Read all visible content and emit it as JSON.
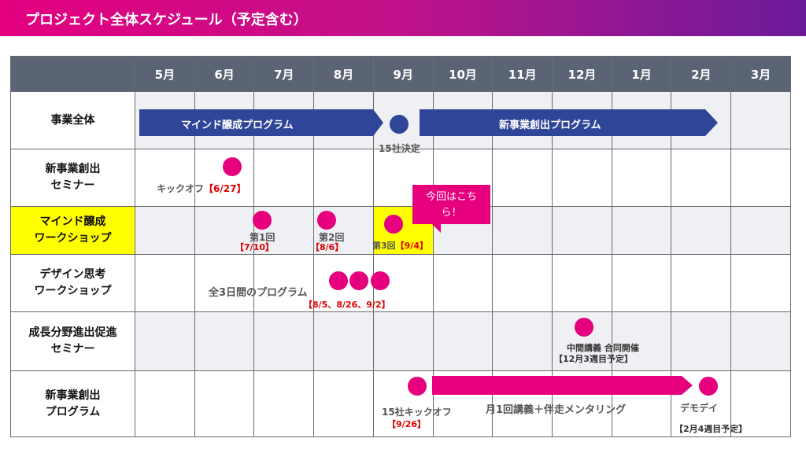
{
  "title": "プロジェクト全体スケジュール（予定含む）",
  "months": [
    "5月",
    "6月",
    "7月",
    "8月",
    "9月",
    "10月",
    "11月",
    "12月",
    "1月",
    "2月",
    "3月"
  ],
  "rows": [
    {
      "label": "事業全体"
    },
    {
      "label": "新事業創出\nセミナー"
    },
    {
      "label": "マインド醸成\nワークショップ"
    },
    {
      "label": "デザイン思考\nワークショップ"
    },
    {
      "label": "成長分野進出促進\nセミナー"
    },
    {
      "label": "新事業創出\nプログラム"
    }
  ],
  "overall": {
    "arrow1": "マインド醸成プログラム",
    "arrow2": "新事業創出プログラム",
    "milestone": "15社決定"
  },
  "seminar": {
    "label": "キックオフ",
    "date": "【6/27】"
  },
  "mind_ws": {
    "s1": "第1回",
    "d1": "【7/10】",
    "s2": "第2回",
    "d2": "【8/6】",
    "s3": "第3回",
    "d3": "【9/4】",
    "callout": "今回はこちら！"
  },
  "design_ws": {
    "label": "全3日間のプログラム",
    "dates": "【8/5、8/26、9/2】"
  },
  "growth": {
    "label": "中間講義 合同開催",
    "date": "【12月3週目予定】"
  },
  "program": {
    "kickoff": "15社キックオフ",
    "kickoff_date": "【9/26】",
    "middle": "月1回講義＋伴走メンタリング",
    "demo": "デモデイ",
    "demo_date": "【2月4週目予定】"
  },
  "colors": {
    "navy": "#2f4597",
    "magenta": "#e6007e",
    "header": "#5a6474",
    "highlight": "#ffff00"
  }
}
